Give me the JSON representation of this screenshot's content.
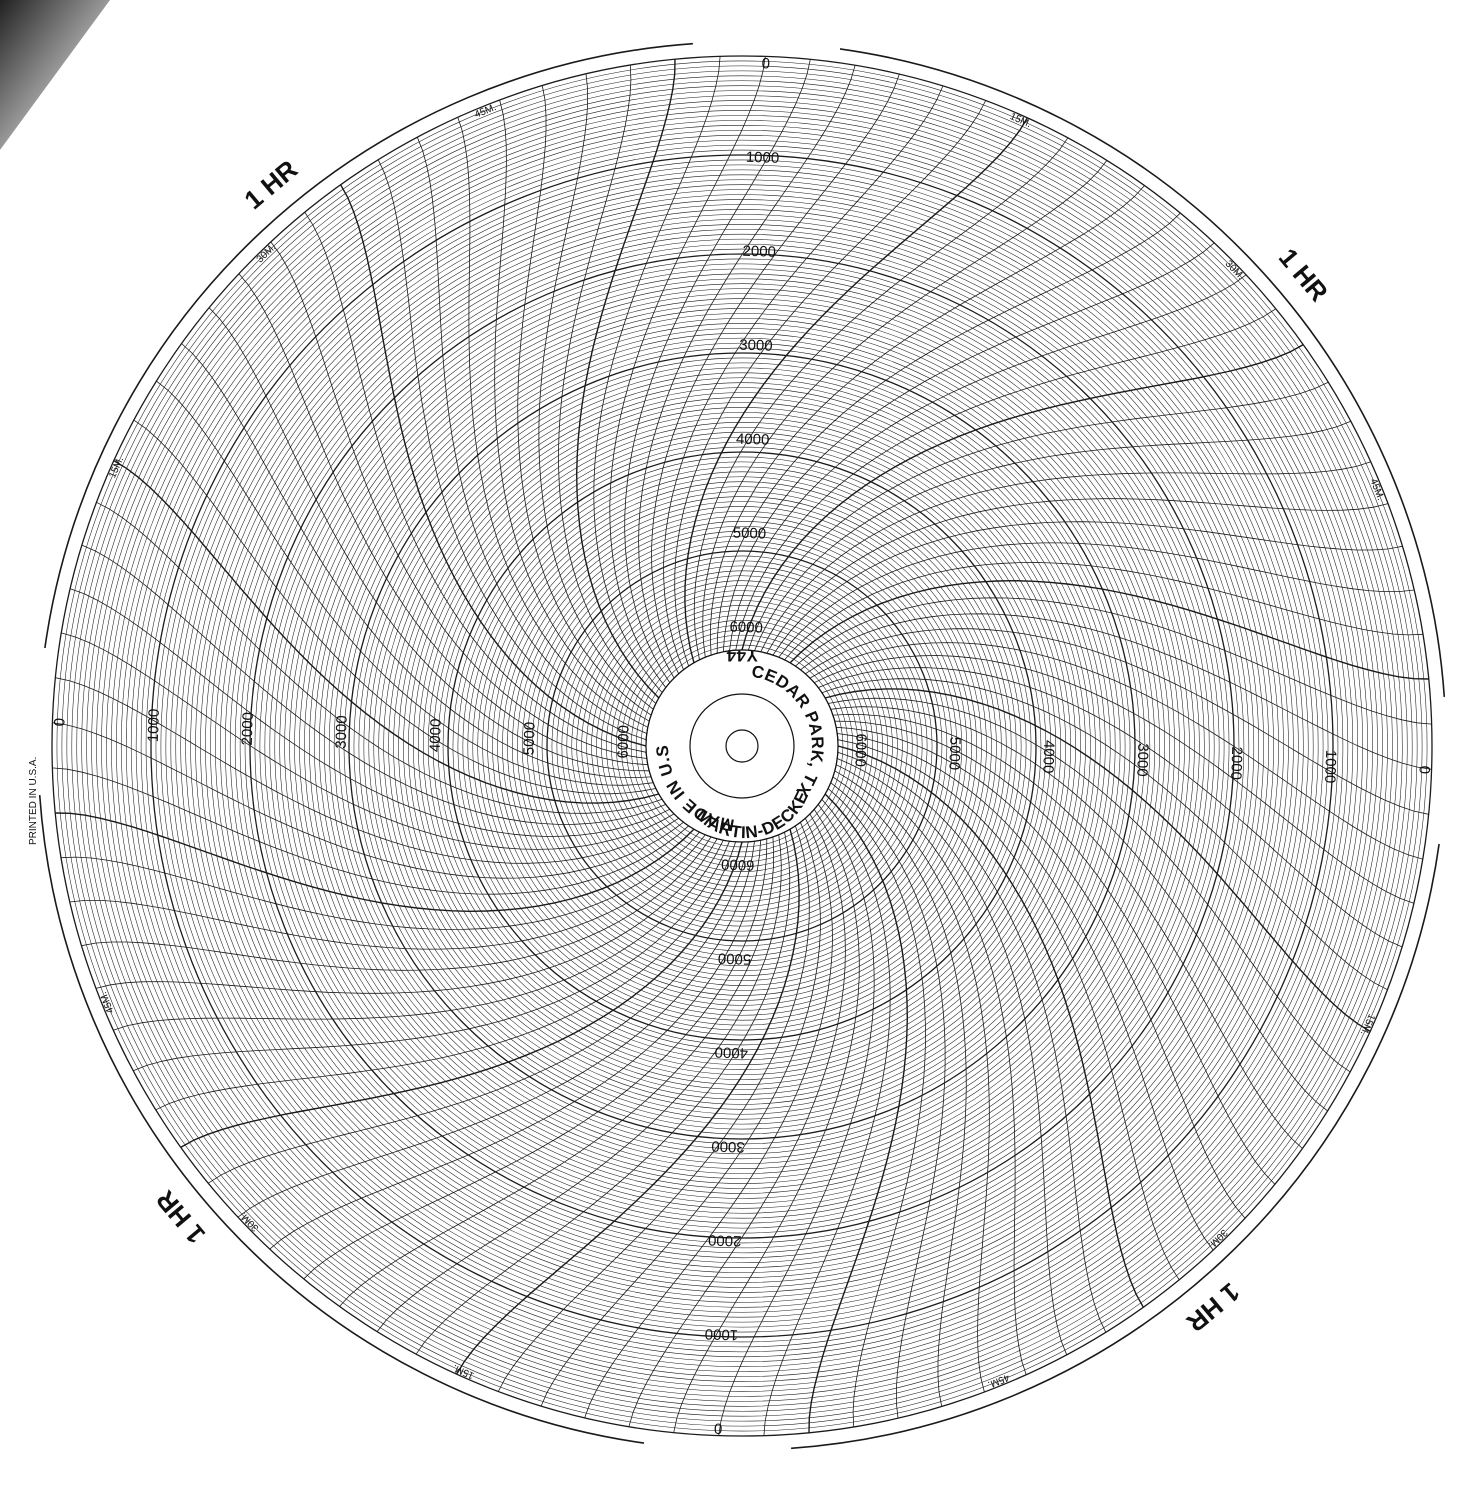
{
  "chart_data": {
    "type": "circular recorder chart",
    "range": [
      0,
      6000
    ],
    "scale_labels": [
      "0",
      "1000",
      "2000",
      "3000",
      "4000",
      "5000",
      "6000"
    ],
    "hour_label": "1 HR",
    "minute_labels": [
      "15M.",
      "30M.",
      "45M."
    ],
    "segments": 4,
    "ink_color": "#1a1a1a",
    "paper_color": "#ffffff"
  },
  "hub": {
    "line1": "CEDAR PARK, TX",
    "line2": "MARTIN-DECKER",
    "line3": "MADE IN U.S.A.",
    "code": "Y44"
  },
  "margin_note": "PRINTED IN U.S.A."
}
